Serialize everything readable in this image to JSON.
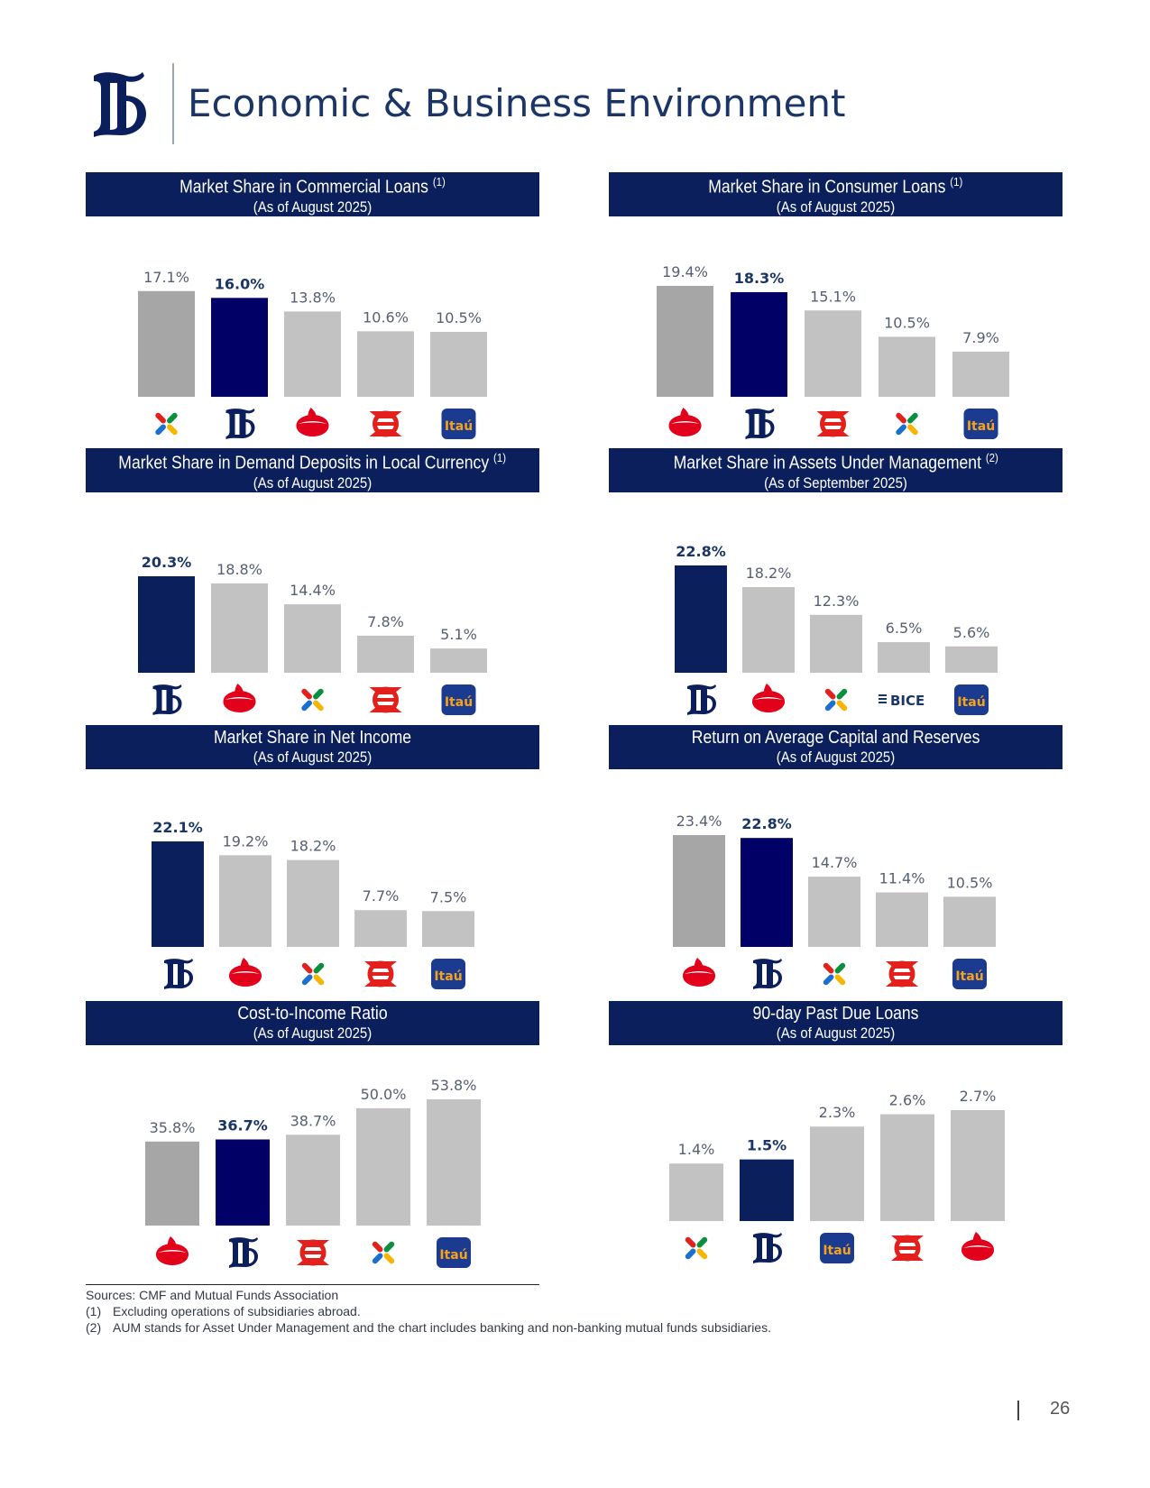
{
  "page": {
    "title": "Economic & Business Environment",
    "page_number": "26"
  },
  "colors": {
    "navy": "#0b1f5c",
    "dark_gray": "#a6a6a6",
    "light_gray": "#c2c2c2",
    "santander_red": "#e2001a",
    "itau_blue": "#1a3b8f",
    "itau_orange": "#f7a21b",
    "scotia_red": "#e3201b"
  },
  "chart_data": [
    {
      "type": "bar",
      "title": "Market Share in Commercial Loans",
      "title_note": "(1)",
      "subtitle": "(As of August 2025)",
      "categories": [
        "bci-logo",
        "banco-de-chile-logo",
        "santander-logo",
        "scotiabank-logo",
        "itau-logo"
      ],
      "values": [
        17.1,
        16.0,
        13.8,
        10.6,
        10.5
      ],
      "value_labels": [
        "17.1%",
        "16.0%",
        "13.8%",
        "10.6%",
        "10.5%"
      ],
      "bar_colors": [
        "#a6a6a6",
        "#000066",
        "#c2c2c2",
        "#c2c2c2",
        "#c2c2c2"
      ],
      "highlight_index": 1,
      "ylim": [
        0,
        19.4
      ]
    },
    {
      "type": "bar",
      "title": "Market Share in Consumer Loans",
      "title_note": "(1)",
      "subtitle": "(As of August 2025)",
      "categories": [
        "santander-logo",
        "banco-de-chile-logo",
        "scotiabank-logo",
        "bci-logo",
        "itau-logo"
      ],
      "values": [
        19.4,
        18.3,
        15.1,
        10.5,
        7.9
      ],
      "value_labels": [
        "19.4%",
        "18.3%",
        "15.1%",
        "10.5%",
        "7.9%"
      ],
      "bar_colors": [
        "#a6a6a6",
        "#000066",
        "#c2c2c2",
        "#c2c2c2",
        "#c2c2c2"
      ],
      "highlight_index": 1,
      "ylim": [
        0,
        19.4
      ]
    },
    {
      "type": "bar",
      "title": "Market Share in Demand Deposits in Local Currency",
      "title_note": "(1)",
      "subtitle": "(As of August 2025)",
      "categories": [
        "banco-de-chile-logo",
        "santander-logo",
        "bci-logo",
        "scotiabank-logo",
        "itau-logo"
      ],
      "values": [
        20.3,
        18.8,
        14.4,
        7.8,
        5.1
      ],
      "value_labels": [
        "20.3%",
        "18.8%",
        "14.4%",
        "7.8%",
        "5.1%"
      ],
      "bar_colors": [
        "#0b1f5c",
        "#c2c2c2",
        "#c2c2c2",
        "#c2c2c2",
        "#c2c2c2"
      ],
      "highlight_index": 0,
      "ylim": [
        0,
        20.3
      ]
    },
    {
      "type": "bar",
      "title": "Market Share in Assets Under Management",
      "title_note": "(2)",
      "subtitle": "(As of September 2025)",
      "categories": [
        "banco-de-chile-logo",
        "santander-logo",
        "bci-logo",
        "bice-logo",
        "itau-logo"
      ],
      "values": [
        22.8,
        18.2,
        12.3,
        6.5,
        5.6
      ],
      "value_labels": [
        "22.8%",
        "18.2%",
        "12.3%",
        "6.5%",
        "5.6%"
      ],
      "bar_colors": [
        "#0b1f5c",
        "#c2c2c2",
        "#c2c2c2",
        "#c2c2c2",
        "#c2c2c2"
      ],
      "highlight_index": 0,
      "ylim": [
        0,
        22.8
      ],
      "bice_text": "BICE"
    },
    {
      "type": "bar",
      "title": "Market Share in Net Income",
      "title_note": "",
      "subtitle": "(As of August 2025)",
      "categories": [
        "banco-de-chile-logo",
        "santander-logo",
        "bci-logo",
        "scotiabank-logo",
        "itau-logo"
      ],
      "values": [
        22.1,
        19.2,
        18.2,
        7.7,
        7.5
      ],
      "value_labels": [
        "22.1%",
        "19.2%",
        "18.2%",
        "7.7%",
        "7.5%"
      ],
      "bar_colors": [
        "#0b1f5c",
        "#c2c2c2",
        "#c2c2c2",
        "#c2c2c2",
        "#c2c2c2"
      ],
      "highlight_index": 0,
      "ylim": [
        0,
        22.1
      ]
    },
    {
      "type": "bar",
      "title": "Return on Average Capital and Reserves",
      "title_note": "",
      "subtitle": "(As of August 2025)",
      "categories": [
        "santander-logo",
        "banco-de-chile-logo",
        "bci-logo",
        "scotiabank-logo",
        "itau-logo"
      ],
      "values": [
        23.4,
        22.8,
        14.7,
        11.4,
        10.5
      ],
      "value_labels": [
        "23.4%",
        "22.8%",
        "14.7%",
        "11.4%",
        "10.5%"
      ],
      "bar_colors": [
        "#a6a6a6",
        "#000066",
        "#c2c2c2",
        "#c2c2c2",
        "#c2c2c2"
      ],
      "highlight_index": 1,
      "ylim": [
        0,
        23.4
      ]
    },
    {
      "type": "bar",
      "title": "Cost-to-Income Ratio",
      "title_note": "",
      "subtitle": "(As of August 2025)",
      "categories": [
        "santander-logo",
        "banco-de-chile-logo",
        "scotiabank-logo",
        "bci-logo",
        "itau-logo"
      ],
      "values": [
        35.8,
        36.7,
        38.7,
        50.0,
        53.8
      ],
      "value_labels": [
        "35.8%",
        "36.7%",
        "38.7%",
        "50.0%",
        "53.8%"
      ],
      "bar_colors": [
        "#a6a6a6",
        "#000066",
        "#c2c2c2",
        "#c2c2c2",
        "#c2c2c2"
      ],
      "highlight_index": 1,
      "ylim": [
        0,
        53.8
      ]
    },
    {
      "type": "bar",
      "title": "90-day Past Due Loans",
      "title_note": "",
      "subtitle": "(As of August 2025)",
      "categories": [
        "bci-logo",
        "banco-de-chile-logo",
        "itau-logo",
        "scotiabank-logo",
        "santander-logo"
      ],
      "values": [
        1.4,
        1.5,
        2.3,
        2.6,
        2.7
      ],
      "value_labels": [
        "1.4%",
        "1.5%",
        "2.3%",
        "2.6%",
        "2.7%"
      ],
      "bar_colors": [
        "#c2c2c2",
        "#0b1f5c",
        "#c2c2c2",
        "#c2c2c2",
        "#c2c2c2"
      ],
      "highlight_index": 1,
      "ylim": [
        0,
        2.7
      ]
    }
  ],
  "footer": {
    "sources": "Sources: CMF and Mutual Funds Association",
    "notes": [
      {
        "num": "(1)",
        "text": "Excluding operations of subsidiaries abroad."
      },
      {
        "num": "(2)",
        "text": "AUM stands for Asset Under Management and the chart includes banking and non-banking mutual funds subsidiaries."
      }
    ]
  },
  "logos": {
    "itau_text": "Itaú"
  }
}
